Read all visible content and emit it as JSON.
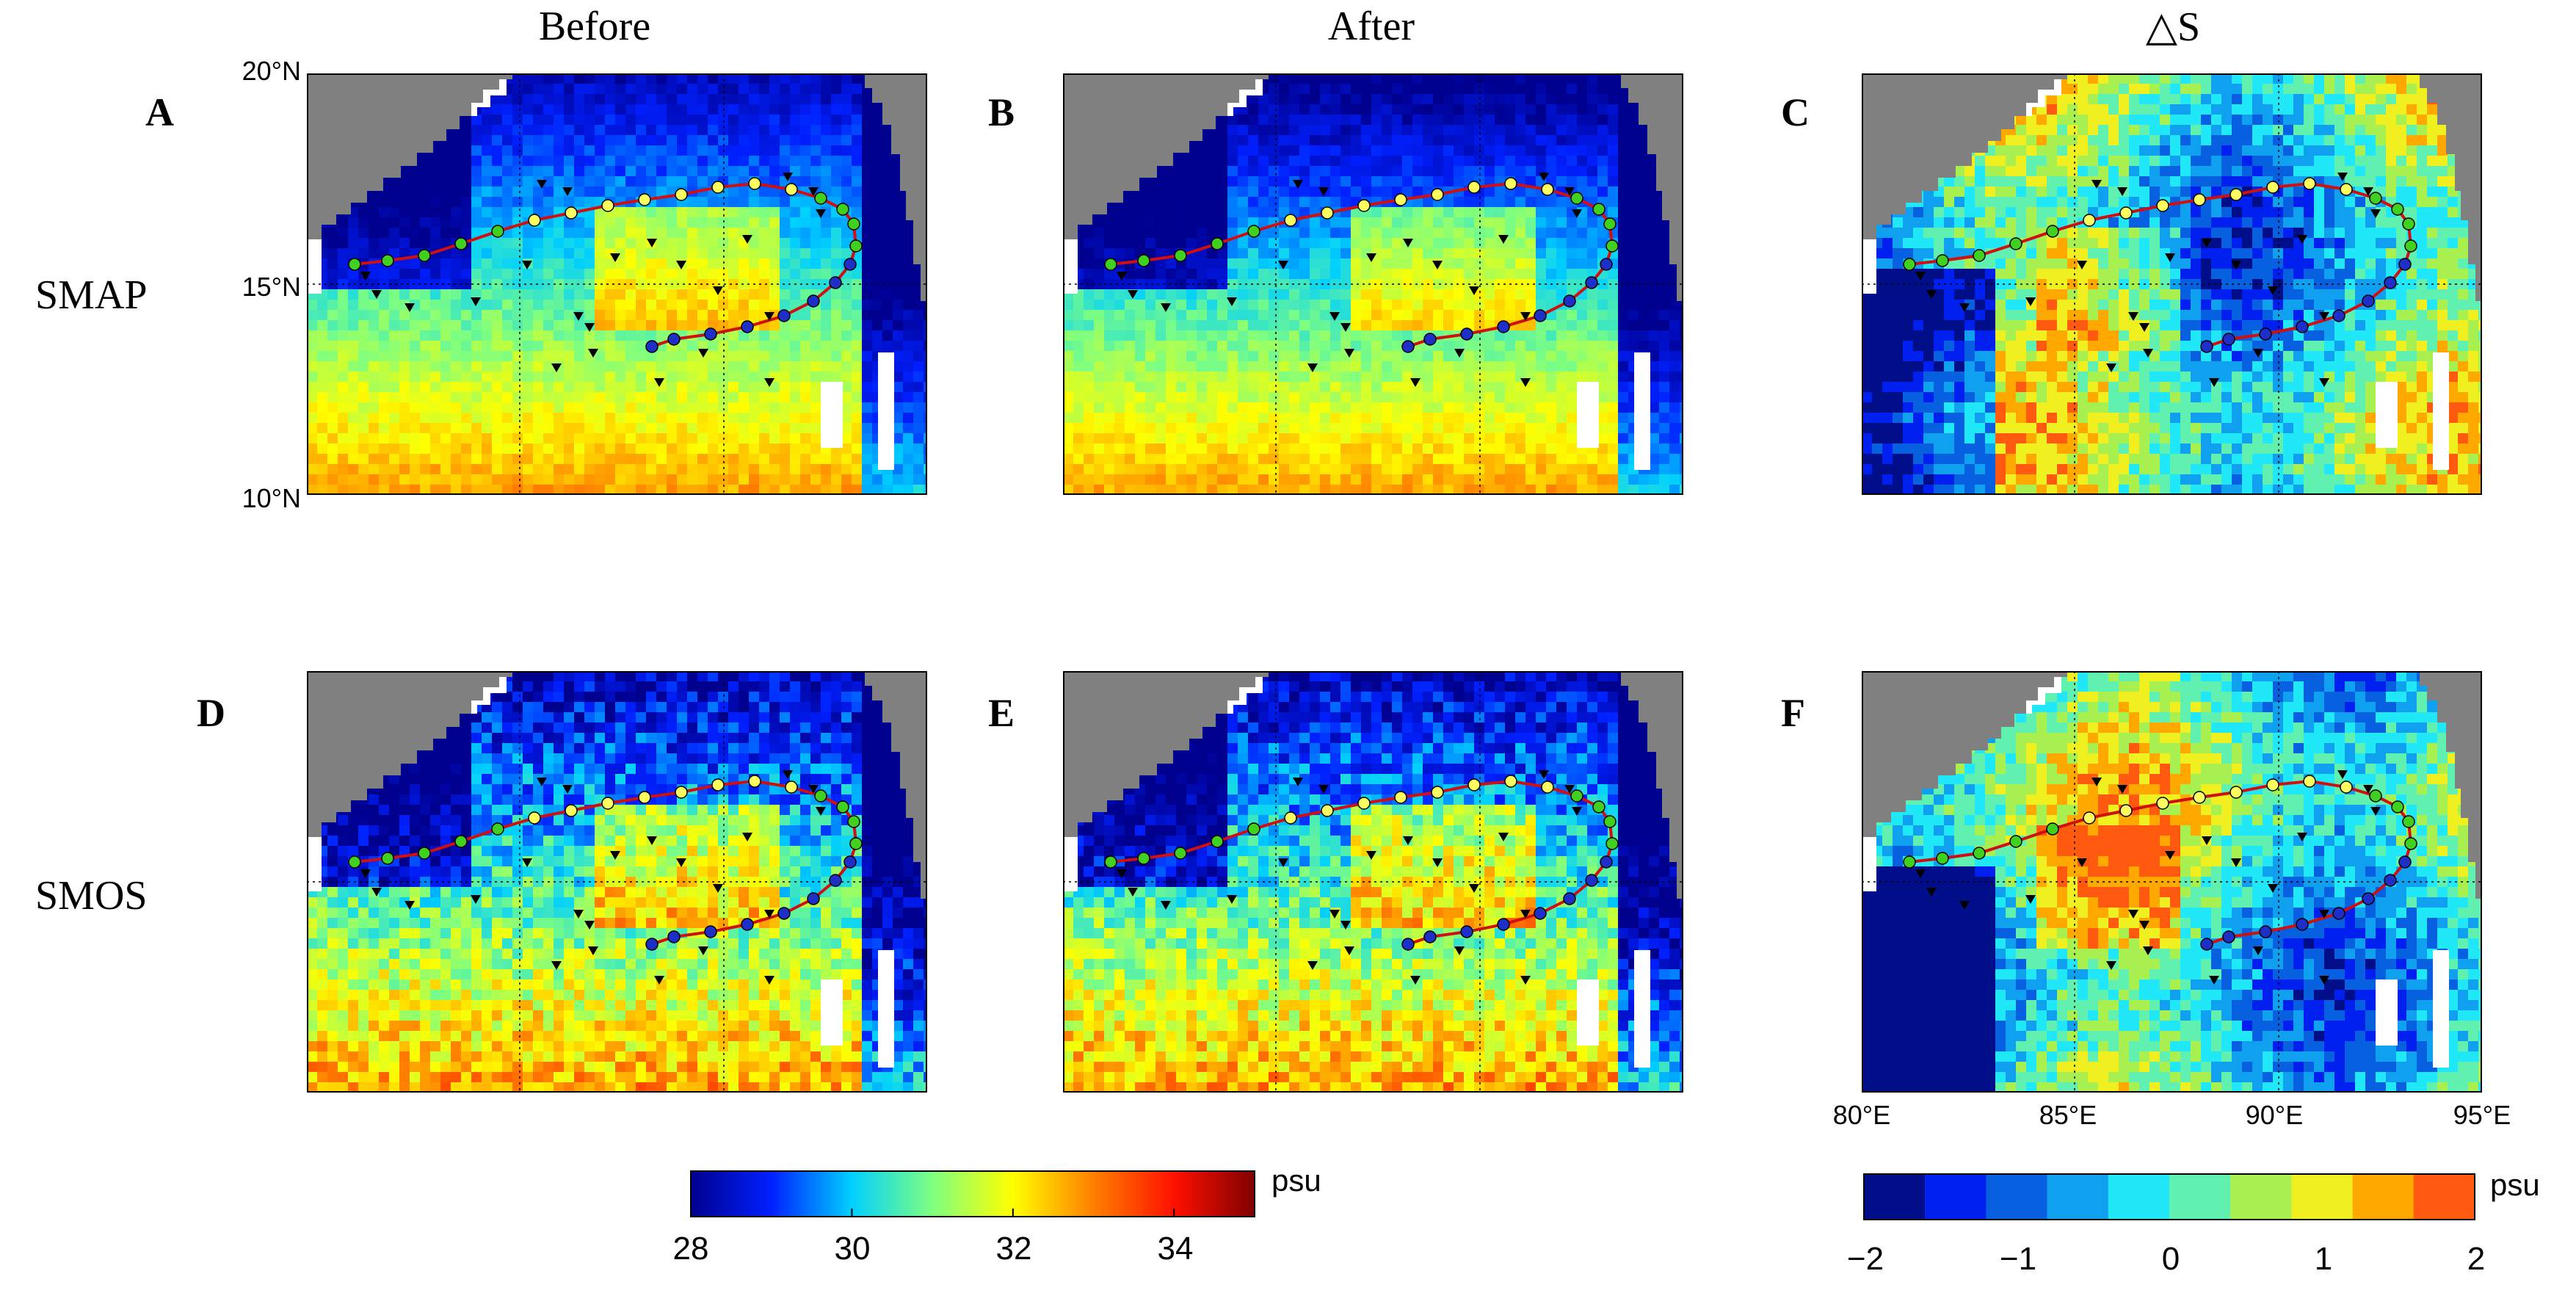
{
  "columns": [
    "Before",
    "After",
    "△S"
  ],
  "rows": [
    "SMAP",
    "SMOS"
  ],
  "panels": [
    {
      "letter": "A",
      "row": 0,
      "col": 0
    },
    {
      "letter": "B",
      "row": 0,
      "col": 1
    },
    {
      "letter": "C",
      "row": 0,
      "col": 2
    },
    {
      "letter": "D",
      "row": 1,
      "col": 0
    },
    {
      "letter": "E",
      "row": 1,
      "col": 1
    },
    {
      "letter": "F",
      "row": 1,
      "col": 2
    }
  ],
  "lat_labels": [
    "20°N",
    "15°N",
    "10°N"
  ],
  "lon_labels": [
    "80°E",
    "85°E",
    "90°E",
    "95°E"
  ],
  "salinity_colorbar": {
    "unit": "psu",
    "min": 28,
    "max": 35,
    "ticks": [
      "28",
      "30",
      "32",
      "34"
    ],
    "stops": [
      "#00008f",
      "#0020ff",
      "#00d0ff",
      "#7fff7f",
      "#ffff00",
      "#ff7f00",
      "#ff1000",
      "#800000"
    ]
  },
  "delta_colorbar": {
    "unit": "psu",
    "min": -2,
    "max": 2,
    "ticks": [
      "−2",
      "−1",
      "0",
      "1",
      "2"
    ],
    "colors": [
      "#000e8a",
      "#0020f0",
      "#0660e0",
      "#10a0f0",
      "#20e8f8",
      "#60f0b0",
      "#a8f050",
      "#f0f020",
      "#ffa800",
      "#ff5a10"
    ]
  },
  "legend_colors": {
    "land": "#808080",
    "track_line": "#d01010",
    "marker_blue": "#1e2fc8",
    "marker_green": "#40d020",
    "marker_yellow": "#ffff60",
    "argo": "#000000"
  }
}
